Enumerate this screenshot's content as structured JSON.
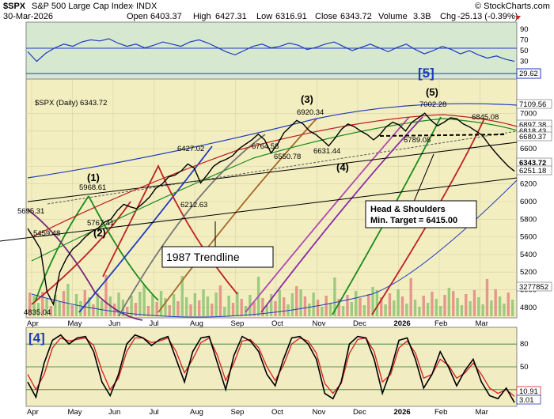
{
  "header": {
    "title": "$SPX",
    "subtitle": "S&P 500 Large Cap Index",
    "exchange": "INDX",
    "date": "30-Mar-2026",
    "open_label": "Open",
    "open": "6403.37",
    "high_label": "High",
    "high": "6427.31",
    "low_label": "Low",
    "low": "6316.91",
    "close_label": "Close",
    "close": "6343.72",
    "volume_label": "Volume",
    "volume": "3.3B",
    "chg_label": "Chg",
    "chg": "-25.13 (-0.39%)",
    "watermark": "© StockCharts.com",
    "legend": "$SPX (Daily) 6343.72"
  },
  "colors": {
    "panel_top_bg": "#d6e8cf",
    "panel_main_bg": "#f2eec0",
    "panel_bottom_bg": "#f1ecc2",
    "price_line": "#000000",
    "rsi_line": "#1f3bbf",
    "stoch_k": "#000000",
    "stoch_d": "#d62020",
    "annotation_blue": "#1f3bbf",
    "volume_up": "#7fbf6a",
    "volume_down": "#e07a7a"
  },
  "chart_data": [
    {
      "type": "line",
      "panel": "top",
      "ylim": [
        0,
        100
      ],
      "y_ticks": [
        10,
        30,
        50,
        70,
        90
      ],
      "reference_lines": [
        70,
        30
      ],
      "last_value_label": "29.62",
      "series": [
        {
          "values": [
            48,
            30,
            45,
            55,
            62,
            58,
            66,
            70,
            68,
            72,
            64,
            58,
            62,
            55,
            60,
            66,
            62,
            58,
            66,
            70,
            64,
            56,
            48,
            42,
            50,
            58,
            62,
            55,
            58,
            64,
            60,
            52,
            56,
            62,
            66,
            58,
            50,
            56,
            62,
            55,
            48,
            56,
            62,
            52,
            44,
            50,
            58,
            52,
            44,
            50,
            42,
            36,
            40,
            34,
            30
          ]
        }
      ]
    },
    {
      "type": "line",
      "panel": "main",
      "xlabel": "",
      "ylabel": "",
      "ylim": [
        4700,
        7300
      ],
      "x_ticks": [
        "Apr",
        "May",
        "Jun",
        "Jul",
        "Aug",
        "Sep",
        "Oct",
        "Nov",
        "Dec",
        "2026",
        "Feb",
        "Mar"
      ],
      "y_ticks": [
        4800,
        5000,
        5200,
        5400,
        5600,
        5800,
        6000,
        6200,
        6400,
        6600,
        6800,
        7000
      ],
      "series": [
        {
          "values": [
            5695,
            5580,
            5460,
            4980,
            4835,
            5200,
            5350,
            5459,
            5520,
            5600,
            5660,
            5700,
            5767,
            5800,
            5900,
            5969,
            5940,
            5920,
            5980,
            6050,
            6150,
            6200,
            6280,
            6300,
            6350,
            6427,
            6380,
            6212,
            6300,
            6400,
            6450,
            6480,
            6520,
            6600,
            6650,
            6700,
            6765,
            6700,
            6551,
            6650,
            6780,
            6850,
            6920,
            6880,
            6800,
            6760,
            6700,
            6631,
            6720,
            6820,
            6880,
            6850,
            6800,
            6760,
            6700,
            6760,
            6850,
            6900,
            6870,
            6800,
            6900,
            6950,
            7002,
            6920,
            6860,
            6900,
            6950,
            6940,
            6880,
            6846,
            6800,
            6750,
            6650,
            6560,
            6480,
            6403,
            6344
          ]
        }
      ],
      "right_axis_labels": [
        "7109.56",
        "6897.38",
        "6818.43",
        "6680.37",
        "6343.72",
        "6251.18",
        "3277852"
      ],
      "point_labels": [
        "5695.31",
        "5459.48",
        "4835.04",
        "5968.61",
        "5767.41",
        "6427.02",
        "6212.63",
        "6764.58",
        "6550.78",
        "6920.34",
        "6631.44",
        "7002.28",
        "6789.08",
        "6845.08"
      ],
      "wave_labels": [
        "(1)",
        "(2)",
        "(3)",
        "(4)",
        "(5)"
      ],
      "annotations": [
        "1987 Trendline",
        "Head & Shoulders",
        "Min. Target = 6415.00"
      ],
      "blue_label": "[5]"
    },
    {
      "type": "line",
      "panel": "bottom",
      "ylim": [
        0,
        100
      ],
      "x_ticks": [
        "Apr",
        "May",
        "Jun",
        "Jul",
        "Aug",
        "Sep",
        "Oct",
        "Nov",
        "Dec",
        "2026",
        "Feb",
        "Mar"
      ],
      "y_ticks": [
        20,
        50,
        80
      ],
      "reference_lines": [
        80,
        50,
        20
      ],
      "right_axis_labels": [
        "10.91",
        "3.01"
      ],
      "blue_label": "[4]",
      "series": [
        {
          "values": [
            30,
            10,
            55,
            85,
            92,
            80,
            88,
            90,
            70,
            30,
            12,
            40,
            80,
            92,
            88,
            78,
            86,
            90,
            60,
            30,
            70,
            88,
            90,
            55,
            20,
            65,
            90,
            84,
            70,
            40,
            25,
            60,
            88,
            90,
            80,
            60,
            15,
            8,
            30,
            80,
            90,
            88,
            60,
            15,
            45,
            85,
            88,
            60,
            22,
            40,
            70,
            50,
            25,
            45,
            60,
            30,
            12,
            8,
            22,
            3
          ]
        },
        {
          "values": [
            40,
            20,
            40,
            75,
            88,
            84,
            86,
            88,
            78,
            45,
            20,
            35,
            70,
            88,
            88,
            82,
            84,
            88,
            70,
            42,
            60,
            82,
            88,
            65,
            32,
            55,
            84,
            86,
            75,
            50,
            32,
            52,
            80,
            88,
            84,
            68,
            28,
            15,
            28,
            68,
            86,
            88,
            70,
            30,
            40,
            75,
            84,
            68,
            35,
            40,
            60,
            52,
            35,
            42,
            55,
            40,
            22,
            15,
            20,
            11
          ]
        }
      ]
    }
  ]
}
